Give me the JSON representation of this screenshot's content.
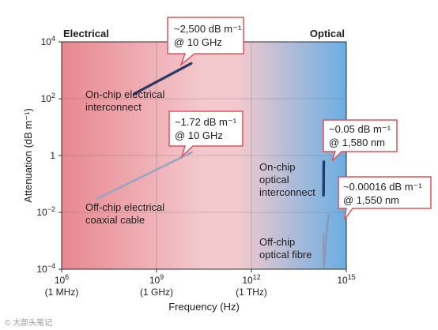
{
  "chart_data": {
    "type": "line",
    "xlabel": "Frequency (Hz)",
    "ylabel": "Attenuation (dB m⁻¹)",
    "x_scale": "log",
    "y_scale": "log",
    "xlim": [
      1000000.0,
      1000000000000000.0
    ],
    "ylim": [
      0.0001,
      10000.0
    ],
    "grid": true,
    "x_ticks": [
      {
        "value": 1000000.0,
        "label_exp": "6",
        "sub": "(1 MHz)"
      },
      {
        "value": 1000000000.0,
        "label_exp": "9",
        "sub": "(1 GHz)"
      },
      {
        "value": 1000000000000.0,
        "label_exp": "12",
        "sub": "(1 THz)"
      },
      {
        "value": 1000000000000000.0,
        "label_exp": "15",
        "sub": ""
      }
    ],
    "y_ticks": [
      {
        "value": 10000.0,
        "base": "10",
        "exp": "4"
      },
      {
        "value": 100.0,
        "base": "10",
        "exp": "2"
      },
      {
        "value": 1,
        "base": "1",
        "exp": ""
      },
      {
        "value": 0.01,
        "base": "10",
        "exp": "−2"
      },
      {
        "value": 0.0001,
        "base": "10",
        "exp": "−4"
      }
    ],
    "regions": [
      {
        "label": "Electrical",
        "position": "top-left"
      },
      {
        "label": "Optical",
        "position": "top-right"
      }
    ],
    "series": [
      {
        "name": "On-chip electrical interconnect",
        "label_lines": [
          "On-chip electrical",
          "interconnect"
        ],
        "color": "#2a3a63",
        "x": [
          200000000.0,
          12500000000.0
        ],
        "y": [
          150,
          1750
        ]
      },
      {
        "name": "Off-chip electrical coaxial cable",
        "label_lines": [
          "Off-chip electrical",
          "coaxial cable"
        ],
        "color": "#9aa6bf",
        "x": [
          13000000.0,
          13000000000.0
        ],
        "y": [
          0.03,
          1.3
        ]
      },
      {
        "name": "On-chip optical interconnect",
        "label_lines": [
          "On-chip",
          "optical",
          "interconnect"
        ],
        "color": "#1e3e73",
        "x": [
          190000000000000.0,
          192000000000000.0,
          193000000000000.0,
          194000000000000.0
        ],
        "y": [
          0.04,
          0.1,
          0.3,
          0.6
        ]
      },
      {
        "name": "Off-chip optical fibre",
        "label_lines": [
          "Off-chip",
          "optical fibre"
        ],
        "color": "#8a9ab8",
        "x": [
          190000000000000.0,
          193000000000000.0,
          196000000000000.0,
          210000000000000.0,
          235000000000000.0,
          275000000000000.0
        ],
        "y": [
          0.0017,
          0.0004,
          0.00012,
          0.00025,
          0.0015,
          0.008
        ]
      }
    ],
    "annotations": [
      {
        "value_text": "~2,500 dB m⁻¹",
        "freq_text": "@ 10 GHz"
      },
      {
        "value_text": "~1.72 dB m⁻¹",
        "freq_text": "@ 10 GHz"
      },
      {
        "value_text": "~0.05 dB m⁻¹",
        "freq_text": "@ 1,580 nm"
      },
      {
        "value_text": "~0.00016 dB m⁻¹",
        "freq_text": "@ 1,550 nm"
      }
    ]
  },
  "colors": {
    "electrical": "#e8878f",
    "mid": "#f3c9ce",
    "optical": "#6aaee3",
    "callout_border": "#e0525c"
  },
  "watermark": "© 大部头笔记"
}
